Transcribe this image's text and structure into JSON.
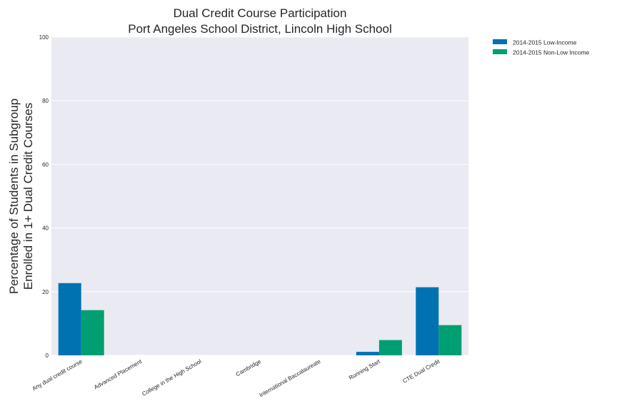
{
  "chart_data": {
    "type": "bar",
    "title_lines": [
      "Dual Credit Course Participation",
      "Port Angeles School District, Lincoln High School"
    ],
    "xlabel": "",
    "ylabel_lines": [
      "Percentage of Students in Subgroup",
      "Enrolled in 1+ Dual Credit Courses"
    ],
    "ylim": [
      0,
      100
    ],
    "yticks": [
      0,
      20,
      40,
      60,
      80,
      100
    ],
    "categories": [
      "Any dual credit course",
      "Advanced Placement",
      "College in the High School",
      "Cambridge",
      "International Baccalaureate",
      "Running Start",
      "CTE Dual Credit"
    ],
    "series": [
      {
        "name": "2014-2015 Low-Income",
        "color": "#0072B2",
        "values": [
          22.7,
          0,
          0,
          0,
          0,
          1.1,
          21.4
        ]
      },
      {
        "name": "2014-2015 Non-Low Income",
        "color": "#009E73",
        "values": [
          14.2,
          0,
          0,
          0,
          0,
          4.8,
          9.5
        ]
      }
    ],
    "grid": true,
    "legend_position": "outside-top-right",
    "background": "#EAEAF2"
  }
}
